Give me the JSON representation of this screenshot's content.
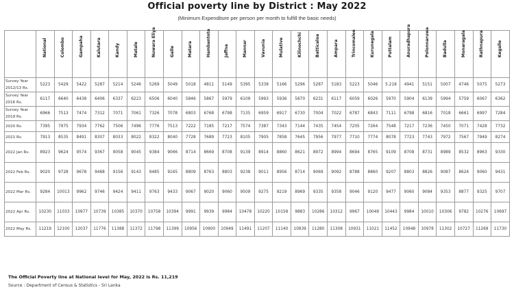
{
  "title": "Official poverty line by District : May 2022",
  "subtitle": "(Minimum Expenditure per person per month to fulfill the basic needs)",
  "footnote": "The Official Poverty line at National level for May, 2022 is Rs. 11,219",
  "source": "Source : Department of Census & Statistics - Sri Lanka",
  "table": {
    "columns": [
      "Colombo",
      "Gampaha",
      "Kalutara",
      "Kandy",
      "Matale",
      "Nuwara Eliya",
      "Galle",
      "Matara",
      "Hambantota",
      "Jaffna",
      "Mannar",
      "Vavunia",
      "Mulative",
      "Kilinochchi",
      "Batticaloa",
      "Ampara",
      "Trincomalee",
      "Kurunegala",
      "Puttalam",
      "Anuradhapura",
      "Polonnaruwa",
      "Badulla",
      "Monaragala",
      "Rathnapura",
      "Kegalle"
    ],
    "rows": [
      {
        "label": "Survey Year 2012/13 Rs.",
        "values": [
          "5223",
          "5429",
          "5422",
          "5287",
          "5214",
          "5246",
          "5269",
          "5049",
          "5018",
          "4811",
          "5149",
          "5395",
          "5338",
          "5166",
          "5296",
          "5287",
          "5183",
          "5223",
          "5046",
          "5.218",
          "4941",
          "5151",
          "5007",
          "4746",
          "5075",
          "5273"
        ]
      },
      {
        "label": "Survey Year 2016 Rs.",
        "values": [
          "6117",
          "6640",
          "6438",
          "6406",
          "6337",
          "6223",
          "6506",
          "6040",
          "5846",
          "5867",
          "5979",
          "6109",
          "5993",
          "5936",
          "5870",
          "6231",
          "6117",
          "6059",
          "6026",
          "5970",
          "5904",
          "6139",
          "5994",
          "5759",
          "6067",
          "6362"
        ]
      },
      {
        "label": "Survey Year 2019 Rs.",
        "values": [
          "6966",
          "7513",
          "7474",
          "7312",
          "7071",
          "7061",
          "7326",
          "7078",
          "6803",
          "6768",
          "6798",
          "7135",
          "6959",
          "6917",
          "6730",
          "7004",
          "7022",
          "6787",
          "6843",
          "7111",
          "6798",
          "6816",
          "7018",
          "6661",
          "6997",
          "7284"
        ]
      },
      {
        "label": "2020 Rs.",
        "values": [
          "7395",
          "7975",
          "7934",
          "7762",
          "7506",
          "7496",
          "7776",
          "7513",
          "7222",
          "7185",
          "7217",
          "7574",
          "7387",
          "7343",
          "7144",
          "7435",
          "7454",
          "7205",
          "7264",
          "7548",
          "7217",
          "7236",
          "7450",
          "7071",
          "7428",
          "7732"
        ]
      },
      {
        "label": "2021 Rs.",
        "values": [
          "7913",
          "8535",
          "8491",
          "8307",
          "8033",
          "8022",
          "8322",
          "8040",
          "7728",
          "7689",
          "7723",
          "8105",
          "7905",
          "7858",
          "7645",
          "7956",
          "7977",
          "7710",
          "7774",
          "8078",
          "7723",
          "7743",
          "7972",
          "7567",
          "7949",
          "8274"
        ]
      },
      {
        "label": "2022 Jan Rs.",
        "values": [
          "8923",
          "9624",
          "9574",
          "9367",
          "9058",
          "9045",
          "9384",
          "9066",
          "8714",
          "8669",
          "8708",
          "9139",
          "8914",
          "8860",
          "8621",
          "8972",
          "8994",
          "8694",
          "8765",
          "9109",
          "8708",
          "8731",
          "8989",
          "8532",
          "8963",
          "9330"
        ]
      },
      {
        "label": "2022 Feb Rs.",
        "values": [
          "9020",
          "9728",
          "9678",
          "9468",
          "9156",
          "9143",
          "9485",
          "9165",
          "8809",
          "8763",
          "8803",
          "9238",
          "9011",
          "8956",
          "8714",
          "9069",
          "9092",
          "8788",
          "8860",
          "9207",
          "8803",
          "8826",
          "9087",
          "8624",
          "9060",
          "9431"
        ]
      },
      {
        "label": "2022 Mar Rs.",
        "values": [
          "9284",
          "10013",
          "9962",
          "9746",
          "9424",
          "9411",
          "9763",
          "9433",
          "9067",
          "9020",
          "9060",
          "9509",
          "9275",
          "9219",
          "8969",
          "9335",
          "9358",
          "9046",
          "9120",
          "9477",
          "9060",
          "9084",
          "9353",
          "8877",
          "9325",
          "9707"
        ]
      },
      {
        "label": "2022 Apr Rs.",
        "values": [
          "10230",
          "11033",
          "10977",
          "10739",
          "10385",
          "10370",
          "10758",
          "10394",
          "9991",
          "9939",
          "9984",
          "10478",
          "10220",
          "10158",
          "9883",
          "10286",
          "10312",
          "9967",
          "10049",
          "10443",
          "9984",
          "10010",
          "10306",
          "9782",
          "10276",
          "10697"
        ]
      },
      {
        "label": "2022 May Rs.",
        "values": [
          "11219",
          "12100",
          "12037",
          "11776",
          "11388",
          "11372",
          "11798",
          "11399",
          "10956",
          "10900",
          "10949",
          "11491",
          "11207",
          "11140",
          "10839",
          "11280",
          "11308",
          "10931",
          "11021",
          "11452",
          "10948",
          "10978",
          "11302",
          "10727",
          "11269",
          "11730"
        ]
      }
    ],
    "national_header": "National"
  }
}
